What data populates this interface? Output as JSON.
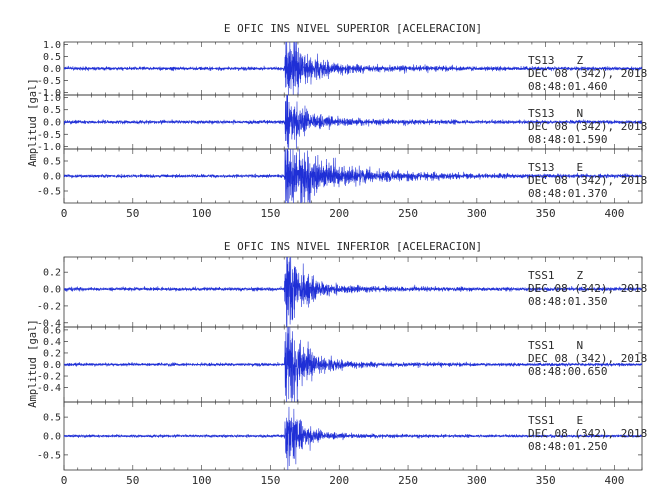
{
  "chart_data": [
    {
      "type": "line",
      "title": "E OFIC INS NIVEL SUPERIOR [ACELERACION]",
      "ylabel": "Amplitud [gal]",
      "xlabel": "",
      "xlim": [
        0,
        420
      ],
      "xticks": [
        "0",
        "50",
        "100",
        "150",
        "200",
        "250",
        "300",
        "350",
        "400"
      ],
      "line_color": "#1f2fd6",
      "grid": false,
      "panels": [
        {
          "station": "TS13",
          "component": "Z",
          "date": "DEC 08 (342), 2018",
          "time": "08:48:01.460",
          "ylim": [
            -1.1,
            1.1
          ],
          "yticks": [
            "1.0",
            "0.5",
            "0.0",
            "-0.5",
            "-1.0"
          ],
          "onset": 160,
          "peak": 1.0,
          "decay": 12,
          "noise": 0.04,
          "coda": 0.12,
          "coda_decay": 60
        },
        {
          "station": "TS13",
          "component": "N",
          "date": "DEC 08 (342), 2018",
          "time": "08:48:01.590",
          "ylim": [
            -1.1,
            1.1
          ],
          "yticks": [
            "1.0",
            "0.5",
            "0.0",
            "-0.5",
            "-1.0"
          ],
          "onset": 160,
          "peak": 0.7,
          "decay": 12,
          "noise": 0.04,
          "coda": 0.1,
          "coda_decay": 50
        },
        {
          "station": "TS13",
          "component": "E",
          "date": "DEC 08 (342), 2018",
          "time": "08:48:01.370",
          "ylim": [
            -0.9,
            0.9
          ],
          "yticks": [
            "0.5",
            "0.0",
            "-0.5"
          ],
          "onset": 160,
          "peak": 0.7,
          "decay": 22,
          "noise": 0.03,
          "coda": 0.15,
          "coda_decay": 70
        }
      ]
    },
    {
      "type": "line",
      "title": "E OFIC INS NIVEL INFERIOR [ACELERACION]",
      "ylabel": "Amplitud [gal]",
      "xlabel": "",
      "xlim": [
        0,
        420
      ],
      "xticks": [
        "0",
        "50",
        "100",
        "150",
        "200",
        "250",
        "300",
        "350",
        "400"
      ],
      "line_color": "#1f2fd6",
      "grid": false,
      "panels": [
        {
          "station": "TSS1",
          "component": "Z",
          "date": "DEC 08 (342), 2018",
          "time": "08:48:01.350",
          "ylim": [
            -0.45,
            0.38
          ],
          "yticks": [
            "0.2",
            "0.0",
            "-0.2",
            "-0.4"
          ],
          "onset": 160,
          "peak": 0.35,
          "decay": 10,
          "noise": 0.012,
          "coda": 0.04,
          "coda_decay": 40
        },
        {
          "station": "TSS1",
          "component": "N",
          "date": "DEC 08 (342), 2018",
          "time": "08:48:00.650",
          "ylim": [
            -0.65,
            0.65
          ],
          "yticks": [
            "0.6",
            "0.4",
            "0.2",
            "0.0",
            "-0.2",
            "-0.4"
          ],
          "onset": 160,
          "peak": 0.6,
          "decay": 11,
          "noise": 0.015,
          "coda": 0.05,
          "coda_decay": 40
        },
        {
          "station": "TSS1",
          "component": "E",
          "date": "DEC 08 (342), 2018",
          "time": "08:48:01.250",
          "ylim": [
            -0.9,
            0.9
          ],
          "yticks": [
            "0.5",
            "0.0",
            "-0.5"
          ],
          "onset": 160,
          "peak": 0.6,
          "decay": 10,
          "noise": 0.02,
          "coda": 0.05,
          "coda_decay": 40
        }
      ]
    }
  ]
}
